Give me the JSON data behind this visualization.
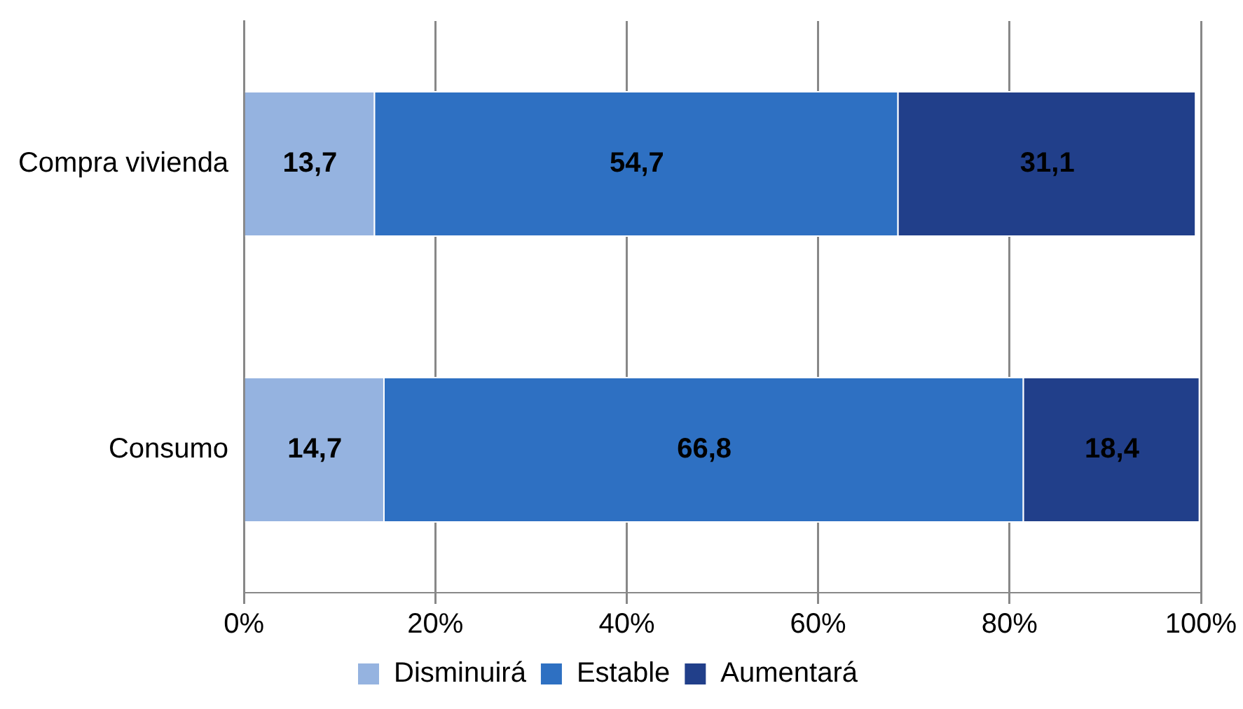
{
  "chart_data": {
    "type": "bar",
    "orientation": "horizontal",
    "stacked": true,
    "categories": [
      "Compra vivienda",
      "Consumo"
    ],
    "series": [
      {
        "name": "Disminuirá",
        "color": "#95b3e0",
        "values": [
          13.7,
          14.7
        ],
        "value_labels": [
          "13,7",
          "14,7"
        ]
      },
      {
        "name": "Estable",
        "color": "#2e70c2",
        "values": [
          54.7,
          66.8
        ],
        "value_labels": [
          "54,7",
          "66,8"
        ]
      },
      {
        "name": "Aumentará",
        "color": "#213f8a",
        "values": [
          31.1,
          18.4
        ],
        "value_labels": [
          "31,1",
          "18,4"
        ]
      }
    ],
    "xlim": [
      0,
      100
    ],
    "xticks": [
      {
        "value": 0,
        "label": "0%"
      },
      {
        "value": 20,
        "label": "20%"
      },
      {
        "value": 40,
        "label": "40%"
      },
      {
        "value": 60,
        "label": "60%"
      },
      {
        "value": 80,
        "label": "80%"
      },
      {
        "value": 100,
        "label": "100%"
      }
    ],
    "grid": "x",
    "legend": "bottom"
  }
}
